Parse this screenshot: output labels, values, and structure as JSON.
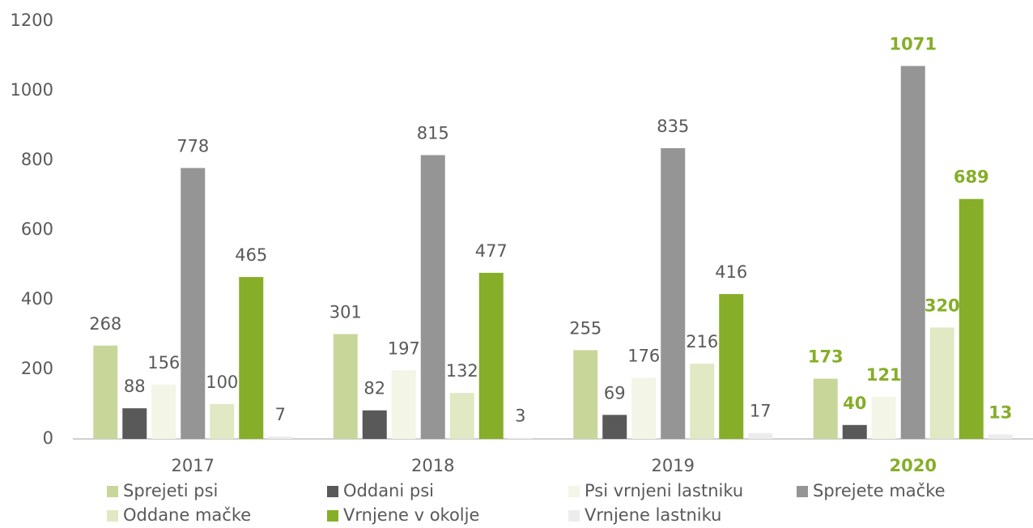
{
  "chart_data": {
    "type": "bar",
    "categories": [
      "2017",
      "2018",
      "2019",
      "2020"
    ],
    "series": [
      {
        "name": "Sprejeti psi",
        "color": "#c9d69a",
        "values": [
          268,
          301,
          255,
          173
        ]
      },
      {
        "name": "Oddani psi",
        "color": "#595959",
        "values": [
          88,
          82,
          69,
          40
        ]
      },
      {
        "name": "Psi vrnjeni lastniku",
        "color": "#f3f5e6",
        "values": [
          156,
          197,
          176,
          121
        ]
      },
      {
        "name": "Sprejete mačke",
        "color": "#959595",
        "values": [
          778,
          815,
          835,
          1071
        ]
      },
      {
        "name": "Oddane mačke",
        "color": "#e0e8c4",
        "values": [
          100,
          132,
          216,
          320
        ]
      },
      {
        "name": "Vrnjene v okolje",
        "color": "#86ae28",
        "values": [
          465,
          477,
          416,
          689
        ]
      },
      {
        "name": "Vrnjene lastniku",
        "color": "#ececec",
        "values": [
          7,
          3,
          17,
          13
        ]
      }
    ],
    "ylim": [
      0,
      1200
    ],
    "yticks": [
      0,
      200,
      400,
      600,
      800,
      1000,
      1200
    ],
    "grid": false,
    "legend": "bottom",
    "highlight_index": 3,
    "highlight_color": "#86ae28"
  }
}
